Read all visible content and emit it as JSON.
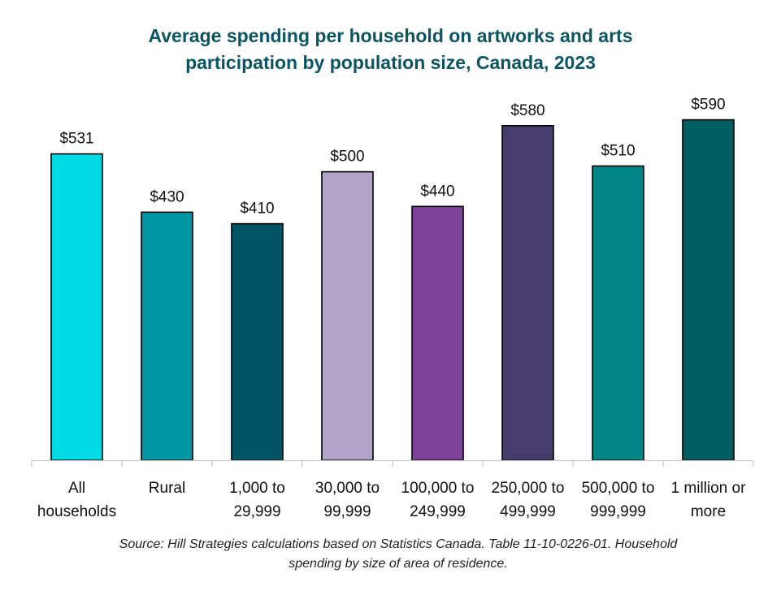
{
  "chart_data": {
    "type": "bar",
    "title_lines": [
      "Average spending per household on artworks and arts",
      "participation by population size, Canada, 2023"
    ],
    "categories": [
      [
        "All",
        "households"
      ],
      [
        "Rural"
      ],
      [
        "1,000 to",
        "29,999"
      ],
      [
        "30,000 to",
        "99,999"
      ],
      [
        "100,000 to",
        "249,999"
      ],
      [
        "250,000 to",
        "499,999"
      ],
      [
        "500,000 to",
        "999,999"
      ],
      [
        "1 million or",
        "more"
      ]
    ],
    "values": [
      531,
      430,
      410,
      500,
      440,
      580,
      510,
      590
    ],
    "value_labels": [
      "$531",
      "$430",
      "$410",
      "$500",
      "$440",
      "$580",
      "$510",
      "$590"
    ],
    "colors": [
      "#00dae5",
      "#0097a5",
      "#025363",
      "#b2a3c9",
      "#7d4399",
      "#463d6d",
      "#008686",
      "#015f63"
    ],
    "ylim": [
      0,
      650
    ],
    "grid": false,
    "legend": "none",
    "xlabel": "",
    "ylabel": ""
  },
  "source_lines": [
    "Source: Hill Strategies calculations based on Statistics Canada. Table 11-10-0226-01. Household",
    "spending by size of area of residence."
  ]
}
